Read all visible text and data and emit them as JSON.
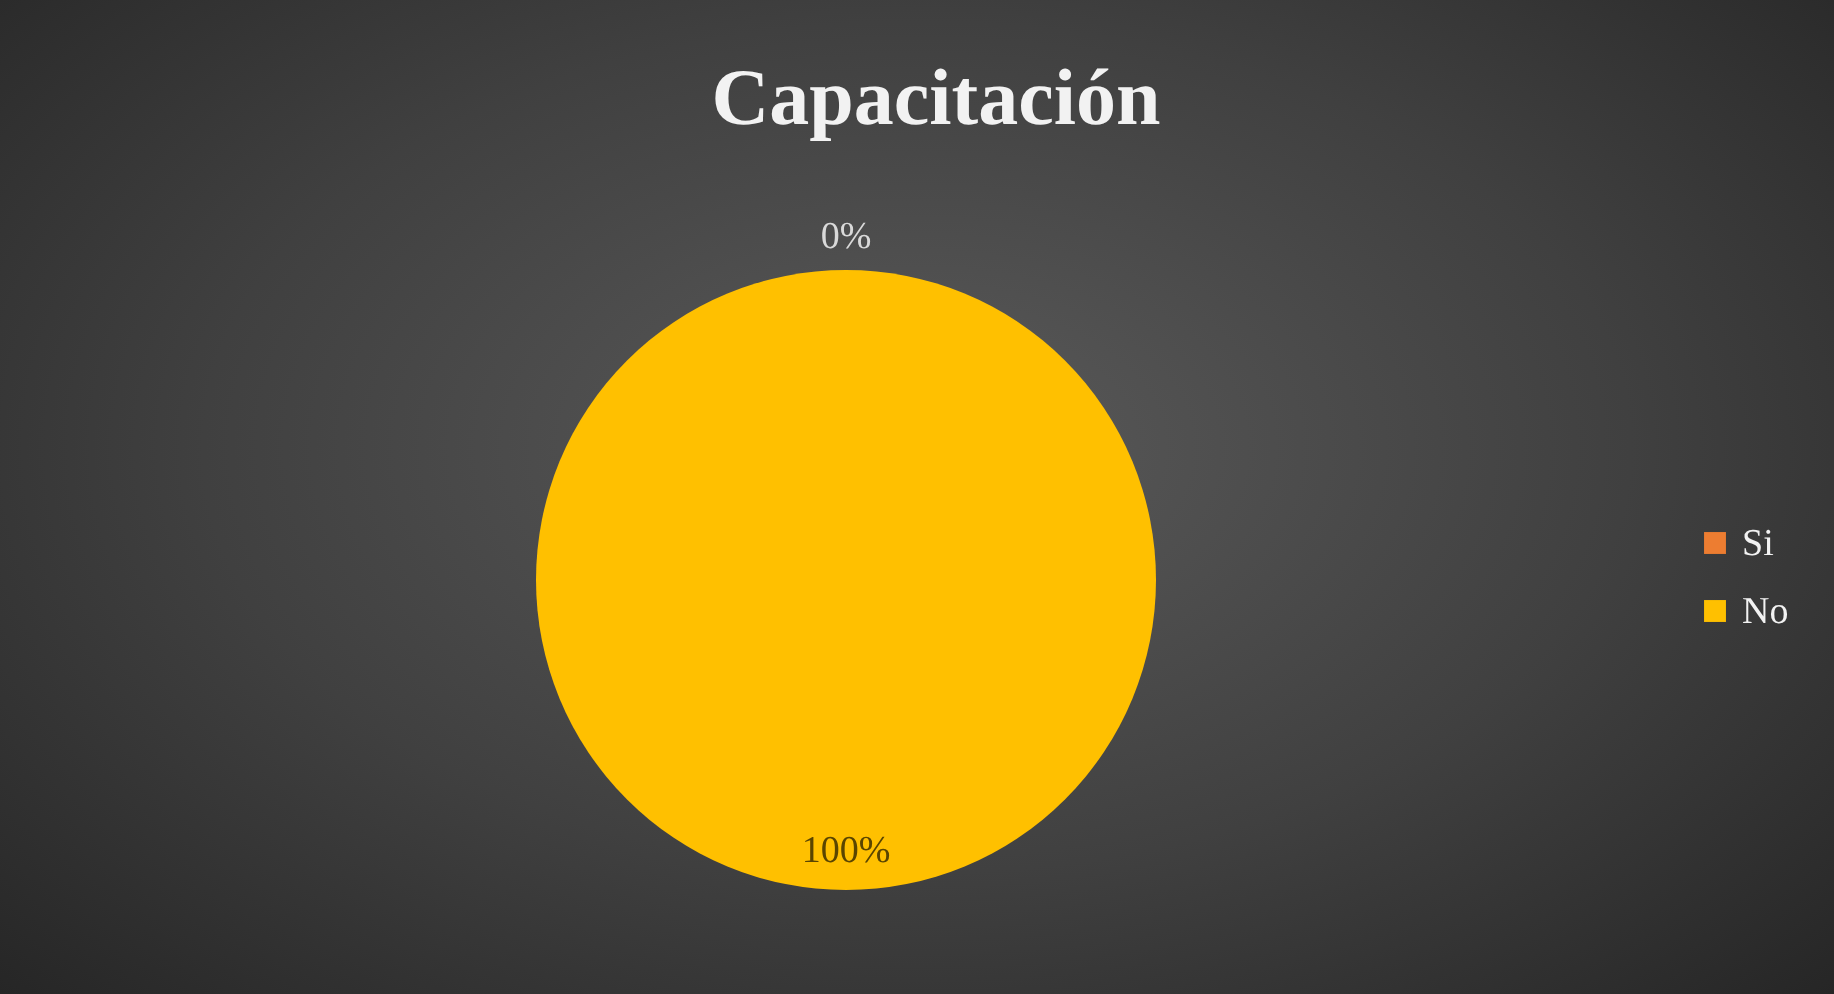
{
  "chart_data": {
    "type": "pie",
    "title": "Capacitación",
    "categories": [
      "Si",
      "No"
    ],
    "values": [
      0,
      100
    ],
    "colors": [
      "#ed7d31",
      "#ffc000"
    ],
    "value_labels": [
      "0%",
      "100%"
    ],
    "legend": "right"
  }
}
